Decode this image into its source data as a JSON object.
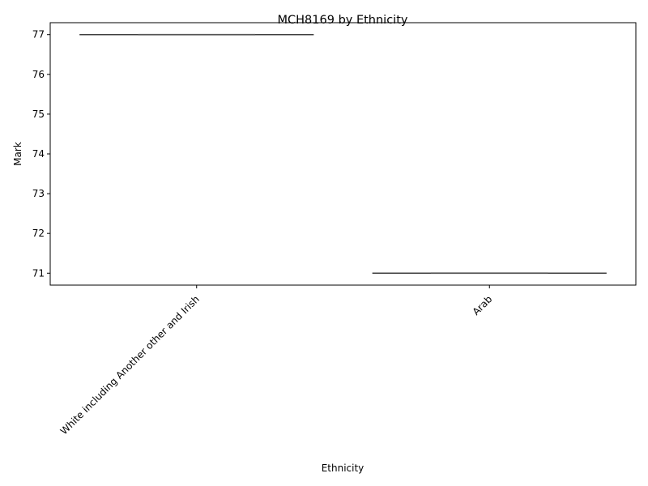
{
  "chart_data": {
    "type": "box",
    "title": "MCH8169 by Ethnicity",
    "xlabel": "Ethnicity",
    "ylabel": "Mark",
    "categories": [
      "White including Another other and Irish",
      "Arab"
    ],
    "values": [
      77,
      71
    ],
    "ylim": [
      70.7,
      77.3
    ],
    "yticks": [
      71,
      72,
      73,
      74,
      75,
      76,
      77
    ],
    "xtick_rotation": 45,
    "grid": false,
    "legend": "none"
  }
}
